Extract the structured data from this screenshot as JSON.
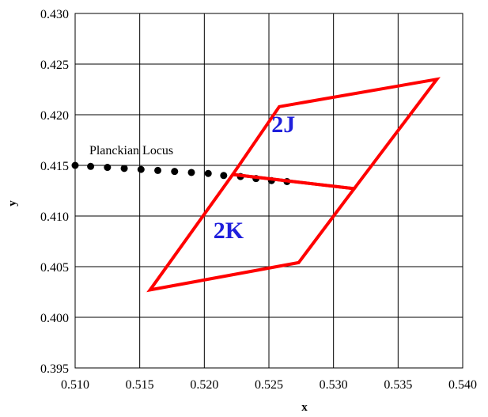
{
  "chart_data": {
    "type": "scatter",
    "xlabel": "x",
    "ylabel": "y",
    "xlim": [
      0.51,
      0.54
    ],
    "ylim": [
      0.395,
      0.43
    ],
    "x_ticks": [
      "0.510",
      "0.515",
      "0.520",
      "0.525",
      "0.530",
      "0.535",
      "0.540"
    ],
    "y_ticks": [
      "0.395",
      "0.400",
      "0.405",
      "0.410",
      "0.415",
      "0.420",
      "0.425",
      "0.430"
    ],
    "grid": true,
    "annotations": [
      {
        "text": "Planckian Locus",
        "x": 0.5111,
        "y": 0.4161
      }
    ],
    "series": [
      {
        "kind": "dots",
        "color": "#000000",
        "points": [
          [
            0.51,
            0.415
          ],
          [
            0.5112,
            0.4149
          ],
          [
            0.5125,
            0.4148
          ],
          [
            0.5138,
            0.4147
          ],
          [
            0.5151,
            0.4146
          ],
          [
            0.5164,
            0.4145
          ],
          [
            0.5177,
            0.4144
          ],
          [
            0.519,
            0.4143
          ],
          [
            0.5203,
            0.4142
          ],
          [
            0.5215,
            0.414
          ],
          [
            0.5228,
            0.4139
          ],
          [
            0.524,
            0.4137
          ],
          [
            0.5252,
            0.4135
          ],
          [
            0.5264,
            0.4134
          ]
        ]
      }
    ],
    "regions": [
      {
        "label": "2J",
        "label_xy": [
          0.5252,
          0.4183
        ],
        "color": "#ff0000",
        "polygon": [
          [
            0.5258,
            0.4208
          ],
          [
            0.538,
            0.4235
          ],
          [
            0.5316,
            0.4127
          ],
          [
            0.5222,
            0.4141
          ]
        ]
      },
      {
        "label": "2K",
        "label_xy": [
          0.5207,
          0.4078
        ],
        "color": "#ff0000",
        "polygon": [
          [
            0.5222,
            0.4141
          ],
          [
            0.5316,
            0.4127
          ],
          [
            0.5273,
            0.4054
          ],
          [
            0.5158,
            0.4027
          ]
        ]
      }
    ],
    "label_color": "#1f1fdc"
  }
}
